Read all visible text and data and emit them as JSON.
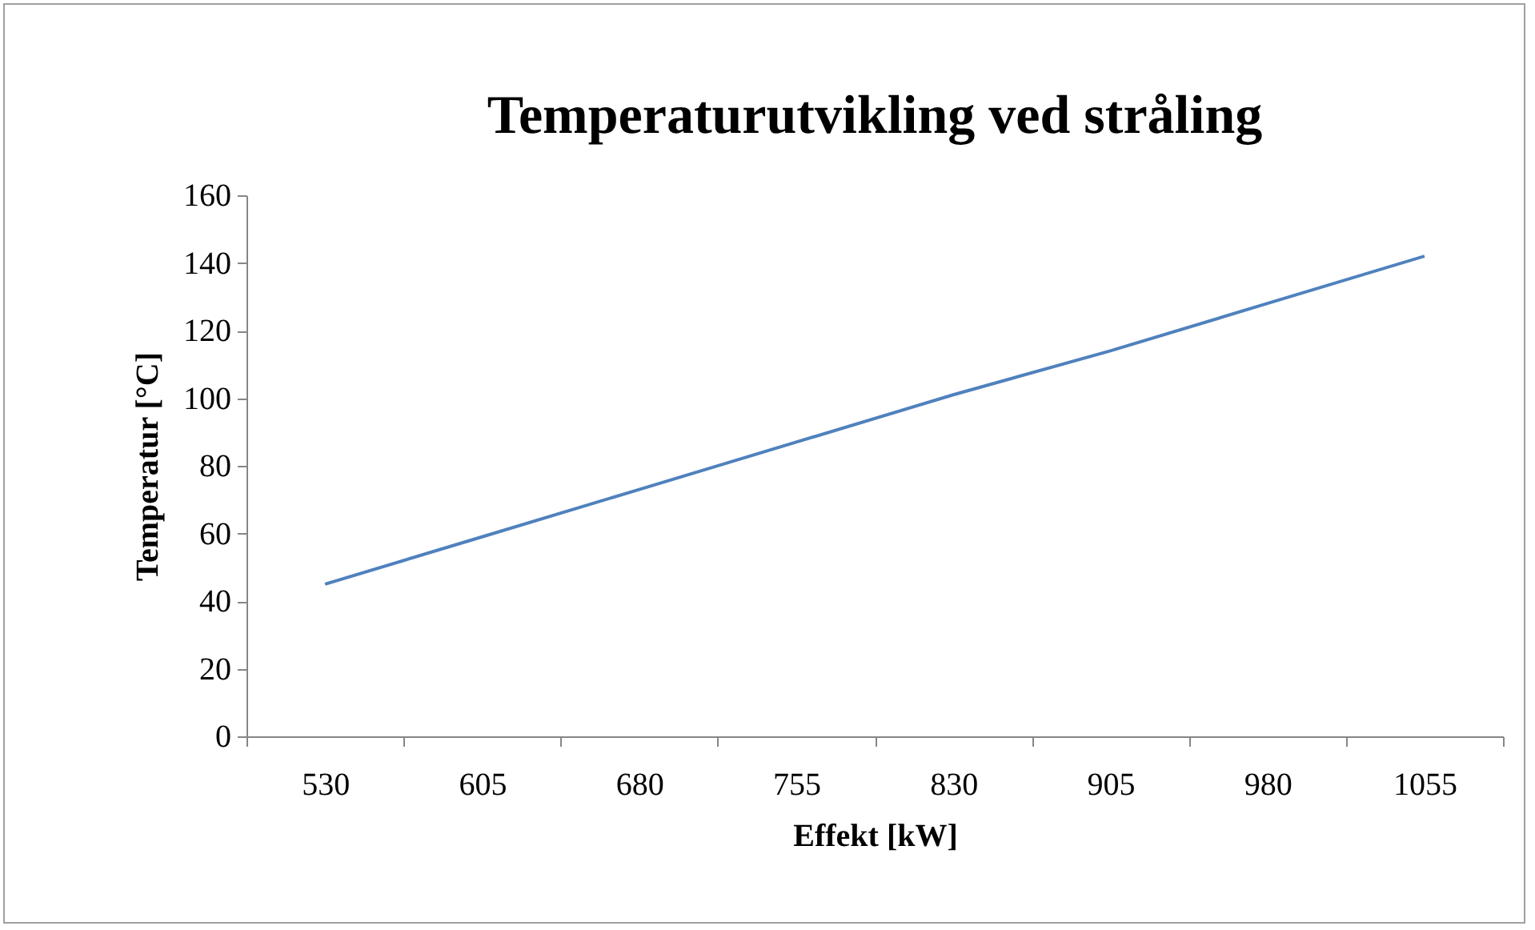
{
  "chart_data": {
    "type": "line",
    "title": "Temperaturutvikling ved stråling",
    "xlabel": "Effekt [kW]",
    "ylabel": "Temperatur [°C]",
    "categories": [
      "530",
      "605",
      "680",
      "755",
      "830",
      "905",
      "980",
      "1055"
    ],
    "series": [
      {
        "color": "#4f81bd",
        "values": [
          45,
          59,
          73,
          87,
          101,
          114,
          128,
          142
        ]
      }
    ],
    "ylim": [
      0,
      160
    ],
    "yticks": [
      0,
      20,
      40,
      60,
      80,
      100,
      120,
      140,
      160
    ],
    "grid": false,
    "marker": "none",
    "line_style": "solid"
  }
}
